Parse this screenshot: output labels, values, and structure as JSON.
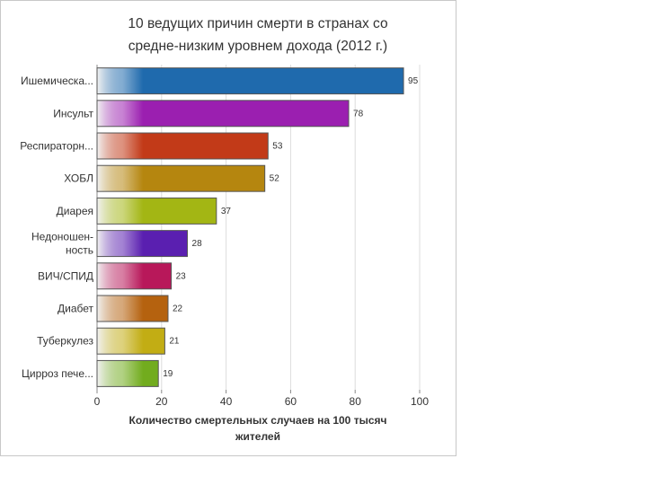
{
  "chart_data": {
    "type": "bar",
    "orientation": "horizontal",
    "title": "10 ведущих причин смерти в странах со средне-низким уровнем дохода (2012 г.)",
    "title_lines": [
      "10 ведущих причин смерти в странах со",
      "средне-низким уровнем дохода (2012 г.)"
    ],
    "categories": [
      "Ишемическа...",
      "Инсульт",
      "Респираторн...",
      "ХОБЛ",
      "Диарея",
      "Недоношен-ность",
      "ВИЧ/СПИД",
      "Диабет",
      "Туберкулез",
      "Цирроз пече..."
    ],
    "category_lines": [
      [
        "Ишемическа..."
      ],
      [
        "Инсульт"
      ],
      [
        "Респираторн..."
      ],
      [
        "ХОБЛ"
      ],
      [
        "Диарея"
      ],
      [
        "Недоношен-",
        "ность"
      ],
      [
        "ВИЧ/СПИД"
      ],
      [
        "Диабет"
      ],
      [
        "Туберкулез"
      ],
      [
        "Цирроз пече..."
      ]
    ],
    "values": [
      95,
      78,
      53,
      52,
      37,
      28,
      23,
      22,
      21,
      19
    ],
    "colors": [
      "#1f6aad",
      "#9b1fb0",
      "#c23a18",
      "#b5860f",
      "#a3b614",
      "#5a1fb0",
      "#b8185a",
      "#b5620f",
      "#c2ad14",
      "#72ac1e"
    ],
    "xlabel": "Количество смертельных случаев на 100 тысяч жителей",
    "xlabel_lines": [
      "Количество смертельных случаев на 100 тысяч",
      "жителей"
    ],
    "xticks": [
      0,
      20,
      40,
      60,
      80,
      100
    ],
    "xlim": [
      0,
      100
    ],
    "grid": true,
    "data_labels": true
  }
}
